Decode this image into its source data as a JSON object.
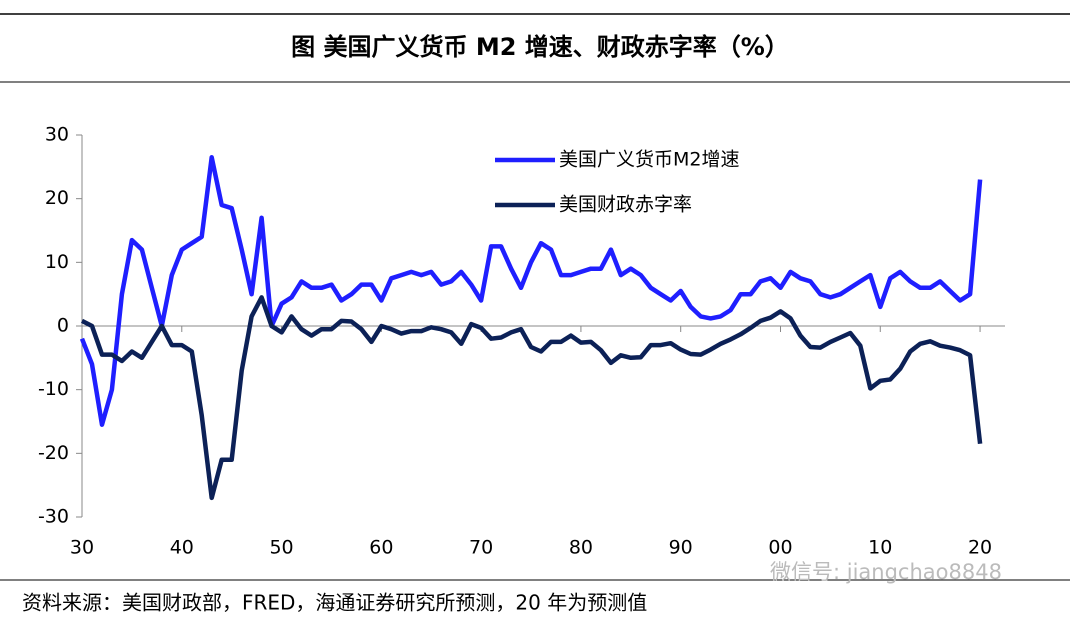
{
  "chart_data": {
    "type": "line",
    "title": "图  美国广义货币 M2 增速、财政赤字率（%）",
    "source": "资料来源：美国财政部，FRED，海通证券研究所预测，20 年为预测值",
    "watermark": "微信号: jiangchao8848",
    "x": [
      1930,
      1931,
      1932,
      1933,
      1934,
      1935,
      1936,
      1937,
      1938,
      1939,
      1940,
      1941,
      1942,
      1943,
      1944,
      1945,
      1946,
      1947,
      1948,
      1949,
      1950,
      1951,
      1952,
      1953,
      1954,
      1955,
      1956,
      1957,
      1958,
      1959,
      1960,
      1961,
      1962,
      1963,
      1964,
      1965,
      1966,
      1967,
      1968,
      1969,
      1970,
      1971,
      1972,
      1973,
      1974,
      1975,
      1976,
      1977,
      1978,
      1979,
      1980,
      1981,
      1982,
      1983,
      1984,
      1985,
      1986,
      1987,
      1988,
      1989,
      1990,
      1991,
      1992,
      1993,
      1994,
      1995,
      1996,
      1997,
      1998,
      1999,
      2000,
      2001,
      2002,
      2003,
      2004,
      2005,
      2006,
      2007,
      2008,
      2009,
      2010,
      2011,
      2012,
      2013,
      2014,
      2015,
      2016,
      2017,
      2018,
      2019,
      2020
    ],
    "series": [
      {
        "name": "美国广义货币M2增速",
        "color": "#1f1fff",
        "values": [
          -2,
          -6,
          -15.5,
          -10,
          5,
          13.5,
          12,
          6,
          0,
          8,
          12,
          13,
          14,
          26.5,
          19,
          18.5,
          12,
          5,
          17,
          0,
          3.5,
          4.5,
          7,
          6,
          6,
          6.5,
          4,
          5,
          6.5,
          6.5,
          4,
          7.5,
          8,
          8.5,
          8,
          8.5,
          6.5,
          7,
          8.5,
          6.5,
          4,
          12.5,
          12.5,
          9,
          6,
          10,
          13,
          12,
          8,
          8,
          8.5,
          9,
          9,
          12,
          8,
          9,
          8,
          6,
          5,
          4,
          5.5,
          3,
          1.5,
          1.2,
          1.5,
          2.5,
          5,
          5,
          7,
          7.5,
          6,
          8.5,
          7.5,
          7,
          5,
          4.5,
          5,
          6,
          7,
          8,
          3,
          7.5,
          8.5,
          7,
          6,
          6,
          7,
          5.5,
          4,
          5,
          23
        ]
      },
      {
        "name": "美国财政赤字率",
        "color": "#0c2157",
        "values": [
          0.8,
          0,
          -4.5,
          -4.5,
          -5.5,
          -4,
          -5,
          -2.5,
          0,
          -3,
          -3,
          -4,
          -14,
          -27,
          -21,
          -21,
          -7,
          1.5,
          4.5,
          0,
          -1,
          1.5,
          -0.5,
          -1.5,
          -0.5,
          -0.5,
          0.8,
          0.7,
          -0.5,
          -2.5,
          0,
          -0.5,
          -1.2,
          -0.8,
          -0.8,
          -0.2,
          -0.5,
          -1,
          -2.8,
          0.3,
          -0.3,
          -2,
          -1.8,
          -1,
          -0.5,
          -3.3,
          -4,
          -2.5,
          -2.5,
          -1.5,
          -2.6,
          -2.5,
          -3.8,
          -5.8,
          -4.6,
          -5,
          -4.9,
          -3,
          -3,
          -2.7,
          -3.7,
          -4.4,
          -4.5,
          -3.7,
          -2.8,
          -2.1,
          -1.3,
          -0.3,
          0.8,
          1.3,
          2.3,
          1.2,
          -1.5,
          -3.3,
          -3.4,
          -2.5,
          -1.8,
          -1.1,
          -3.1,
          -9.8,
          -8.6,
          -8.4,
          -6.7,
          -4,
          -2.8,
          -2.4,
          -3.1,
          -3.4,
          -3.8,
          -4.6,
          -18.5
        ]
      }
    ],
    "xlim": [
      1930,
      2022.5
    ],
    "xticks": [
      {
        "value": 1930,
        "label": "30"
      },
      {
        "value": 1940,
        "label": "40"
      },
      {
        "value": 1950,
        "label": "50"
      },
      {
        "value": 1960,
        "label": "60"
      },
      {
        "value": 1970,
        "label": "70"
      },
      {
        "value": 1980,
        "label": "80"
      },
      {
        "value": 1990,
        "label": "90"
      },
      {
        "value": 2000,
        "label": "00"
      },
      {
        "value": 2010,
        "label": "10"
      },
      {
        "value": 2020,
        "label": "20"
      }
    ],
    "ylim": [
      -30,
      30
    ],
    "yticks": [
      -30,
      -20,
      -10,
      0,
      10,
      20,
      30
    ],
    "grid": false,
    "legend": "upper right"
  }
}
